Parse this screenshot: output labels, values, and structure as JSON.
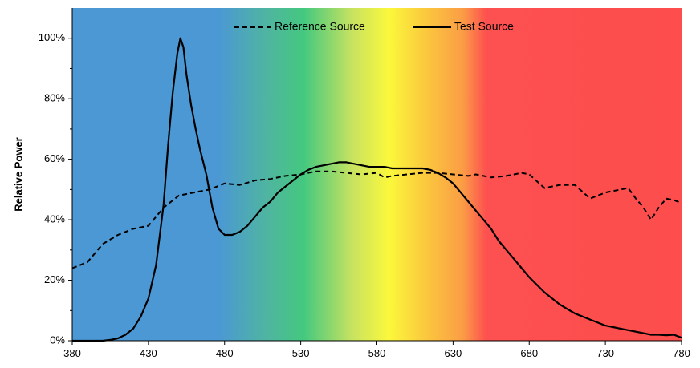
{
  "chart_data": {
    "type": "line",
    "title": "",
    "xlabel": "",
    "ylabel": "Relative Power",
    "xlim": [
      380,
      780
    ],
    "ylim": [
      0,
      1.1
    ],
    "x_ticks": [
      380,
      430,
      480,
      530,
      580,
      630,
      680,
      730,
      780
    ],
    "y_ticks": [
      0,
      0.2,
      0.4,
      0.6,
      0.8,
      1.0
    ],
    "y_tick_labels": [
      "0%",
      "20%",
      "40%",
      "60%",
      "80%",
      "100%"
    ],
    "grid": false,
    "legend_position": "top-center",
    "background": "visible spectrum color band",
    "series": [
      {
        "name": "Reference Source",
        "style": "dashed",
        "color": "#000000",
        "points": [
          [
            380,
            0.24
          ],
          [
            390,
            0.26
          ],
          [
            395,
            0.29
          ],
          [
            400,
            0.32
          ],
          [
            410,
            0.35
          ],
          [
            420,
            0.37
          ],
          [
            430,
            0.38
          ],
          [
            435,
            0.41
          ],
          [
            440,
            0.44
          ],
          [
            450,
            0.48
          ],
          [
            460,
            0.49
          ],
          [
            470,
            0.5
          ],
          [
            480,
            0.52
          ],
          [
            490,
            0.515
          ],
          [
            500,
            0.53
          ],
          [
            510,
            0.535
          ],
          [
            520,
            0.545
          ],
          [
            530,
            0.55
          ],
          [
            540,
            0.56
          ],
          [
            550,
            0.56
          ],
          [
            560,
            0.555
          ],
          [
            570,
            0.55
          ],
          [
            580,
            0.555
          ],
          [
            585,
            0.54
          ],
          [
            590,
            0.545
          ],
          [
            600,
            0.55
          ],
          [
            610,
            0.555
          ],
          [
            620,
            0.555
          ],
          [
            630,
            0.55
          ],
          [
            640,
            0.545
          ],
          [
            645,
            0.55
          ],
          [
            655,
            0.54
          ],
          [
            665,
            0.545
          ],
          [
            675,
            0.555
          ],
          [
            680,
            0.55
          ],
          [
            690,
            0.505
          ],
          [
            700,
            0.515
          ],
          [
            710,
            0.515
          ],
          [
            720,
            0.47
          ],
          [
            730,
            0.49
          ],
          [
            740,
            0.5
          ],
          [
            745,
            0.505
          ],
          [
            750,
            0.47
          ],
          [
            755,
            0.44
          ],
          [
            760,
            0.4
          ],
          [
            765,
            0.44
          ],
          [
            770,
            0.47
          ],
          [
            775,
            0.465
          ],
          [
            780,
            0.455
          ]
        ]
      },
      {
        "name": "Test Source",
        "style": "solid",
        "color": "#000000",
        "points": [
          [
            380,
            0.0
          ],
          [
            390,
            0.0
          ],
          [
            400,
            0.0
          ],
          [
            405,
            0.003
          ],
          [
            410,
            0.008
          ],
          [
            415,
            0.02
          ],
          [
            420,
            0.04
          ],
          [
            425,
            0.08
          ],
          [
            430,
            0.14
          ],
          [
            435,
            0.25
          ],
          [
            440,
            0.45
          ],
          [
            443,
            0.65
          ],
          [
            446,
            0.82
          ],
          [
            449,
            0.95
          ],
          [
            451,
            1.0
          ],
          [
            453,
            0.97
          ],
          [
            455,
            0.88
          ],
          [
            458,
            0.78
          ],
          [
            461,
            0.7
          ],
          [
            464,
            0.63
          ],
          [
            468,
            0.55
          ],
          [
            472,
            0.44
          ],
          [
            476,
            0.37
          ],
          [
            480,
            0.35
          ],
          [
            485,
            0.35
          ],
          [
            490,
            0.36
          ],
          [
            495,
            0.38
          ],
          [
            500,
            0.41
          ],
          [
            505,
            0.44
          ],
          [
            510,
            0.46
          ],
          [
            515,
            0.49
          ],
          [
            520,
            0.51
          ],
          [
            525,
            0.53
          ],
          [
            530,
            0.55
          ],
          [
            535,
            0.565
          ],
          [
            540,
            0.575
          ],
          [
            545,
            0.58
          ],
          [
            550,
            0.585
          ],
          [
            555,
            0.59
          ],
          [
            560,
            0.59
          ],
          [
            565,
            0.585
          ],
          [
            570,
            0.58
          ],
          [
            575,
            0.575
          ],
          [
            580,
            0.575
          ],
          [
            585,
            0.575
          ],
          [
            590,
            0.57
          ],
          [
            595,
            0.57
          ],
          [
            600,
            0.57
          ],
          [
            605,
            0.57
          ],
          [
            610,
            0.57
          ],
          [
            615,
            0.565
          ],
          [
            620,
            0.555
          ],
          [
            625,
            0.54
          ],
          [
            630,
            0.52
          ],
          [
            635,
            0.49
          ],
          [
            640,
            0.46
          ],
          [
            645,
            0.43
          ],
          [
            650,
            0.4
          ],
          [
            655,
            0.37
          ],
          [
            660,
            0.33
          ],
          [
            665,
            0.3
          ],
          [
            670,
            0.27
          ],
          [
            675,
            0.24
          ],
          [
            680,
            0.21
          ],
          [
            685,
            0.185
          ],
          [
            690,
            0.16
          ],
          [
            695,
            0.14
          ],
          [
            700,
            0.12
          ],
          [
            705,
            0.105
          ],
          [
            710,
            0.09
          ],
          [
            715,
            0.08
          ],
          [
            720,
            0.07
          ],
          [
            725,
            0.06
          ],
          [
            730,
            0.05
          ],
          [
            735,
            0.045
          ],
          [
            740,
            0.04
          ],
          [
            745,
            0.035
          ],
          [
            750,
            0.03
          ],
          [
            755,
            0.025
          ],
          [
            760,
            0.02
          ],
          [
            765,
            0.02
          ],
          [
            770,
            0.018
          ],
          [
            775,
            0.02
          ],
          [
            780,
            0.01
          ]
        ]
      }
    ]
  }
}
